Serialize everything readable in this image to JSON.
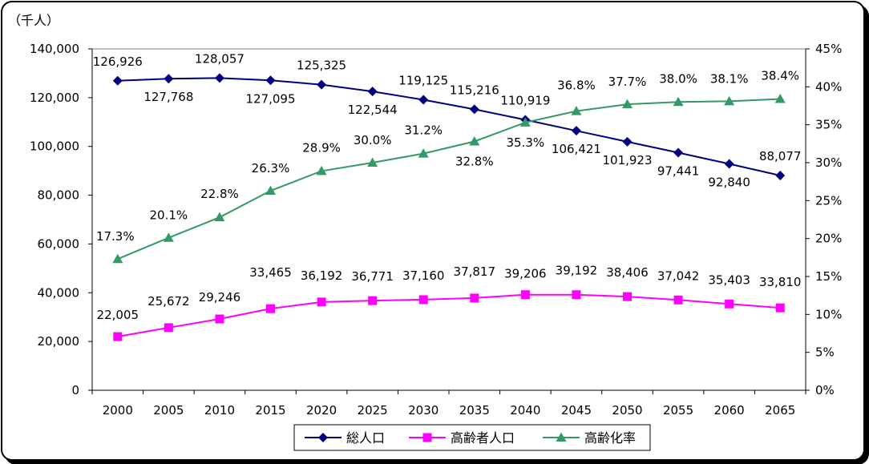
{
  "chart_data": {
    "type": "line",
    "unit_label": "（千人）",
    "categories": [
      "2000",
      "2005",
      "2010",
      "2015",
      "2020",
      "2025",
      "2030",
      "2035",
      "2040",
      "2045",
      "2050",
      "2055",
      "2060",
      "2065"
    ],
    "left_axis": {
      "ylim": [
        0,
        140000
      ],
      "ticks": [
        "0",
        "20,000",
        "40,000",
        "60,000",
        "80,000",
        "100,000",
        "120,000",
        "140,000"
      ]
    },
    "right_axis": {
      "ylim": [
        0,
        45
      ],
      "ticks": [
        "0%",
        "5%",
        "10%",
        "15%",
        "20%",
        "25%",
        "30%",
        "35%",
        "40%",
        "45%"
      ]
    },
    "series": [
      {
        "name": "総人口",
        "axis": "left",
        "color": "#000080",
        "marker": "diamond",
        "values": [
          126926,
          127768,
          128057,
          127095,
          125325,
          122544,
          119125,
          115216,
          110919,
          106421,
          101923,
          97441,
          92840,
          88077
        ],
        "labels": [
          "126,926",
          "127,768",
          "128,057",
          "127,095",
          "125,325",
          "122,544",
          "119,125",
          "115,216",
          "110,919",
          "106,421",
          "101,923",
          "97,441",
          "92,840",
          "88,077"
        ]
      },
      {
        "name": "高齢者人口",
        "axis": "left",
        "color": "#ff00ff",
        "marker": "square",
        "values": [
          22005,
          25672,
          29246,
          33465,
          36192,
          36771,
          37160,
          37817,
          39206,
          39192,
          38406,
          37042,
          35403,
          33810
        ],
        "labels": [
          "22,005",
          "25,672",
          "29,246",
          "33,465",
          "36,192",
          "36,771",
          "37,160",
          "37,817",
          "39,206",
          "39,192",
          "38,406",
          "37,042",
          "35,403",
          "33,810"
        ]
      },
      {
        "name": "高齢化率",
        "axis": "right",
        "color": "#339966",
        "marker": "triangle",
        "values": [
          17.3,
          20.1,
          22.8,
          26.3,
          28.9,
          30.0,
          31.2,
          32.8,
          35.3,
          36.8,
          37.7,
          38.0,
          38.1,
          38.4
        ],
        "labels": [
          "17.3%",
          "20.1%",
          "22.8%",
          "26.3%",
          "28.9%",
          "30.0%",
          "31.2%",
          "32.8%",
          "35.3%",
          "36.8%",
          "37.7%",
          "38.0%",
          "38.1%",
          "38.4%"
        ]
      }
    ],
    "legend_position": "bottom",
    "grid": false
  }
}
